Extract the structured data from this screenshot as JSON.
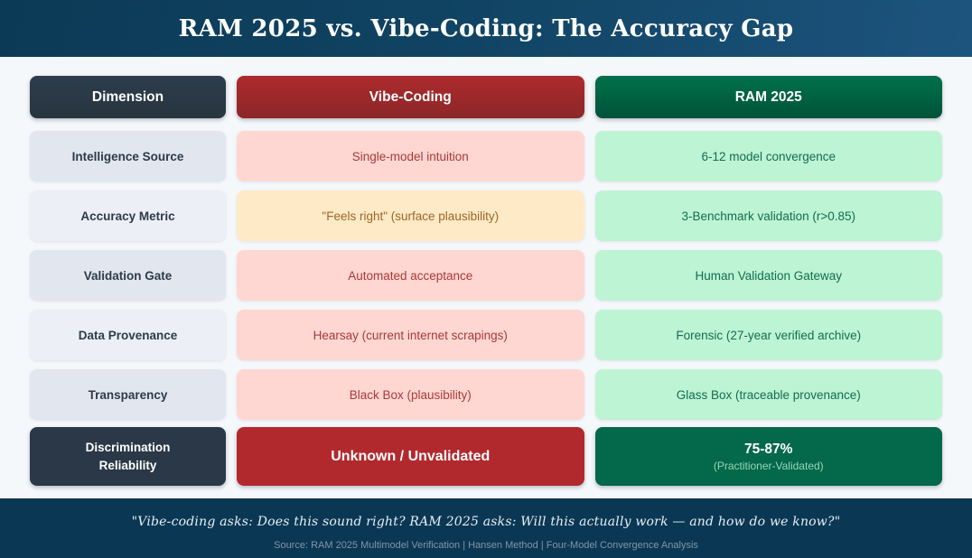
{
  "title": "RAM 2025 vs. Vibe-Coding: The Accuracy Gap",
  "columns": {
    "dimension": "Dimension",
    "vibe": "Vibe-Coding",
    "ram": "RAM 2025"
  },
  "rows": [
    {
      "dimension": "Intelligence Source",
      "vibe": "Single-model intuition",
      "vibe_variant": "pink",
      "ram": "6-12 model convergence"
    },
    {
      "dimension": "Accuracy Metric",
      "vibe": "\"Feels right\" (surface plausibility)",
      "vibe_variant": "amber",
      "ram": "3-Benchmark validation (r>0.85)"
    },
    {
      "dimension": "Validation Gate",
      "vibe": "Automated acceptance",
      "vibe_variant": "pink",
      "ram": "Human Validation Gateway"
    },
    {
      "dimension": "Data Provenance",
      "vibe": "Hearsay (current internet scrapings)",
      "vibe_variant": "pink",
      "ram": "Forensic (27-year verified archive)"
    },
    {
      "dimension": "Transparency",
      "vibe": "Black Box (plausibility)",
      "vibe_variant": "pink",
      "ram": "Glass Box (traceable provenance)"
    }
  ],
  "final_row": {
    "dimension": "Discrimination Reliability",
    "vibe": "Unknown / Unvalidated",
    "ram_value": "75-87%",
    "ram_note": "(Practitioner-Validated)"
  },
  "footer": {
    "quote": "\"Vibe-coding asks: Does this sound right? RAM 2025 asks: Will this actually work — and how do we know?\"",
    "source": "Source: RAM 2025 Multimodel Verification | Hansen Method | Four-Model Convergence Analysis"
  },
  "colors": {
    "title_bar_gradient_start": "#0b3a56",
    "title_bar_gradient_end": "#1d547e",
    "page_background": "#f5f8fb",
    "slate_header": "#2a3847",
    "vibe_header_red": "#a12a2b",
    "ram_header_green": "#006241",
    "vibe_cell_pink": "#fed7d2",
    "vibe_cell_amber": "#feeac6",
    "ram_cell_green": "#bdf4d3",
    "dimension_cell_gray_dark": "#e2e6ee",
    "dimension_cell_gray_light": "#eceff5",
    "final_vibe_red": "#b2292d",
    "final_ram_green": "#04684a",
    "footer_background": "#0a3854"
  }
}
